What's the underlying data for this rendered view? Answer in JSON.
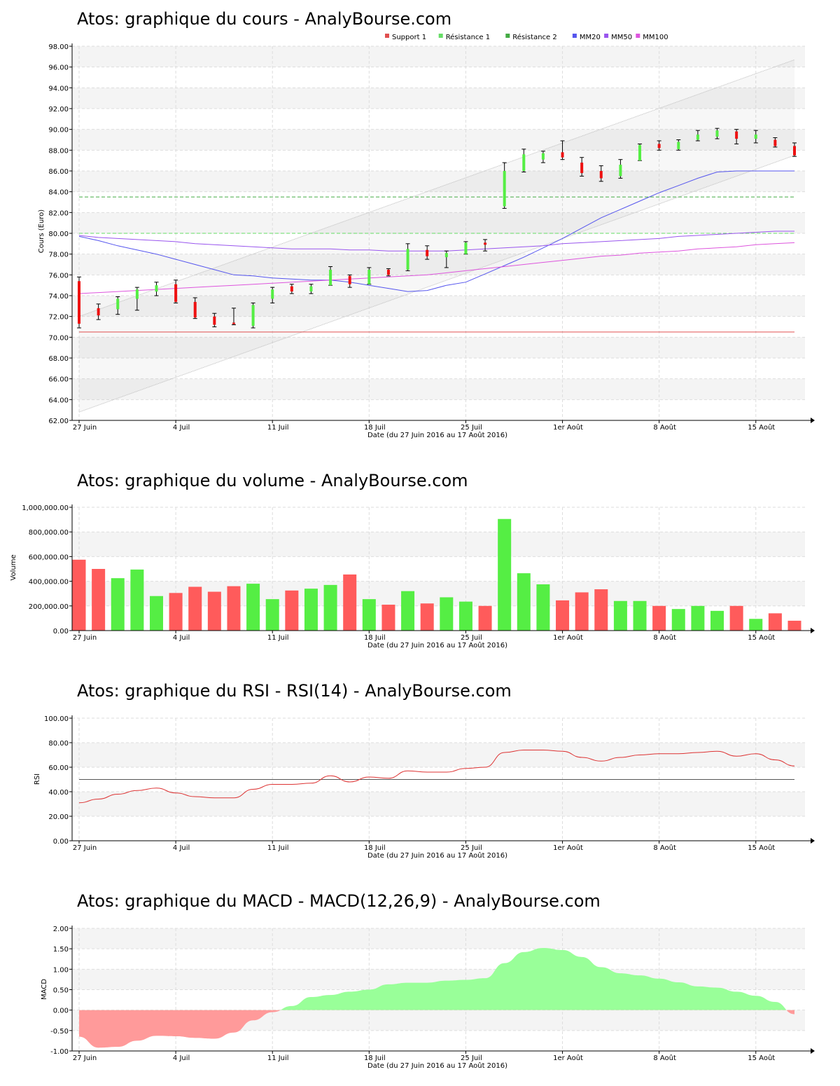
{
  "charts": {
    "price": {
      "title": "Atos: graphique du cours - AnalyBourse.com",
      "ylabel": "Cours (Euro)",
      "xlabel": "Date (du 27 Juin 2016 au 17 Août 2016)",
      "legend": [
        {
          "label": "Support 1",
          "color": "#e05050"
        },
        {
          "label": "Résistance 1",
          "color": "#66dd66"
        },
        {
          "label": "Résistance 2",
          "color": "#44aa44"
        },
        {
          "label": "MM20",
          "color": "#5555ee"
        },
        {
          "label": "MM50",
          "color": "#9955ee"
        },
        {
          "label": "MM100",
          "color": "#dd55dd"
        }
      ]
    },
    "volume": {
      "title": "Atos: graphique du volume - AnalyBourse.com",
      "ylabel": "Volume",
      "xlabel": "Date (du 27 Juin 2016 au 17 Août 2016)"
    },
    "rsi": {
      "title": "Atos: graphique du RSI - RSI(14) - AnalyBourse.com",
      "ylabel": "RSI",
      "xlabel": "Date (du 27 Juin 2016 au 17 Août 2016)"
    },
    "macd": {
      "title": "Atos: graphique du MACD - MACD(12,26,9) - AnalyBourse.com",
      "ylabel": "MACD",
      "xlabel": "Date (du 27 Juin 2016 au 17 Août 2016)"
    }
  },
  "chart_data": [
    {
      "type": "candlestick",
      "title": "Atos: graphique du cours - AnalyBourse.com",
      "ylabel": "Cours (Euro)",
      "xlabel": "Date (du 27 Juin 2016 au 17 Août 2016)",
      "x_tick_labels": [
        "27 Juin",
        "4 Juil",
        "11 Juil",
        "18 Juil",
        "25 Juil",
        "1er Août",
        "8 Août",
        "15 Août"
      ],
      "x_tick_index": [
        0,
        5,
        10,
        15,
        20,
        25,
        30,
        35
      ],
      "y_ticks": [
        "62.00",
        "64.00",
        "66.00",
        "68.00",
        "70.00",
        "72.00",
        "74.00",
        "76.00",
        "78.00",
        "80.00",
        "82.00",
        "84.00",
        "86.00",
        "88.00",
        "90.00",
        "92.00",
        "94.00",
        "96.00",
        "98.00"
      ],
      "ylim": [
        62,
        98
      ],
      "grid": true,
      "legend_position": "top-center",
      "candles": [
        {
          "o": 75.4,
          "h": 75.8,
          "l": 70.9,
          "c": 71.3
        },
        {
          "o": 72.8,
          "h": 73.2,
          "l": 71.7,
          "c": 72.1
        },
        {
          "o": 72.7,
          "h": 73.9,
          "l": 72.2,
          "c": 73.7
        },
        {
          "o": 73.7,
          "h": 74.8,
          "l": 72.6,
          "c": 74.6
        },
        {
          "o": 74.4,
          "h": 75.3,
          "l": 74.0,
          "c": 75.0
        },
        {
          "o": 75.1,
          "h": 75.5,
          "l": 73.3,
          "c": 73.4
        },
        {
          "o": 73.4,
          "h": 73.8,
          "l": 71.8,
          "c": 71.9
        },
        {
          "o": 72.0,
          "h": 72.3,
          "l": 71.0,
          "c": 71.2
        },
        {
          "o": 71.4,
          "h": 72.8,
          "l": 71.2,
          "c": 71.3
        },
        {
          "o": 71.1,
          "h": 73.3,
          "l": 70.9,
          "c": 73.1
        },
        {
          "o": 73.7,
          "h": 74.8,
          "l": 73.3,
          "c": 74.6
        },
        {
          "o": 74.9,
          "h": 75.1,
          "l": 74.2,
          "c": 74.4
        },
        {
          "o": 74.4,
          "h": 75.1,
          "l": 74.2,
          "c": 74.9
        },
        {
          "o": 75.0,
          "h": 76.8,
          "l": 75.0,
          "c": 76.5
        },
        {
          "o": 75.9,
          "h": 76.0,
          "l": 74.8,
          "c": 75.1
        },
        {
          "o": 75.1,
          "h": 76.7,
          "l": 75.1,
          "c": 76.5
        },
        {
          "o": 76.5,
          "h": 76.6,
          "l": 75.9,
          "c": 76.0
        },
        {
          "o": 76.5,
          "h": 79.0,
          "l": 76.4,
          "c": 78.5
        },
        {
          "o": 78.4,
          "h": 78.8,
          "l": 77.5,
          "c": 77.8
        },
        {
          "o": 77.7,
          "h": 78.3,
          "l": 76.7,
          "c": 78.1
        },
        {
          "o": 78.0,
          "h": 79.2,
          "l": 78.0,
          "c": 79.1
        },
        {
          "o": 79.1,
          "h": 79.4,
          "l": 78.3,
          "c": 78.9
        },
        {
          "o": 82.6,
          "h": 86.8,
          "l": 82.4,
          "c": 86.0
        },
        {
          "o": 86.0,
          "h": 88.1,
          "l": 85.9,
          "c": 87.6
        },
        {
          "o": 87.1,
          "h": 87.9,
          "l": 86.8,
          "c": 87.7
        },
        {
          "o": 87.8,
          "h": 88.9,
          "l": 87.1,
          "c": 87.3
        },
        {
          "o": 86.8,
          "h": 87.3,
          "l": 85.5,
          "c": 85.8
        },
        {
          "o": 86.0,
          "h": 86.5,
          "l": 85.0,
          "c": 85.3
        },
        {
          "o": 85.5,
          "h": 87.1,
          "l": 85.3,
          "c": 86.6
        },
        {
          "o": 87.0,
          "h": 88.6,
          "l": 87.0,
          "c": 88.5
        },
        {
          "o": 88.6,
          "h": 88.9,
          "l": 88.0,
          "c": 88.2
        },
        {
          "o": 88.1,
          "h": 89.0,
          "l": 88.0,
          "c": 88.8
        },
        {
          "o": 89.0,
          "h": 89.9,
          "l": 88.9,
          "c": 89.5
        },
        {
          "o": 89.3,
          "h": 90.1,
          "l": 89.1,
          "c": 89.9
        },
        {
          "o": 89.8,
          "h": 90.0,
          "l": 88.6,
          "c": 89.1
        },
        {
          "o": 89.1,
          "h": 89.9,
          "l": 88.7,
          "c": 89.5
        },
        {
          "o": 89.0,
          "h": 89.2,
          "l": 88.3,
          "c": 88.4
        },
        {
          "o": 88.4,
          "h": 88.7,
          "l": 87.4,
          "c": 87.5
        }
      ],
      "series": [
        {
          "name": "MM20",
          "color": "#5555ee",
          "values": [
            79.7,
            79.3,
            78.8,
            78.4,
            78.0,
            77.5,
            77.0,
            76.5,
            76.0,
            75.9,
            75.7,
            75.6,
            75.5,
            75.5,
            75.3,
            75.0,
            74.7,
            74.4,
            74.5,
            75.0,
            75.3,
            76.1,
            76.9,
            77.7,
            78.6,
            79.5,
            80.5,
            81.5,
            82.3,
            83.1,
            83.9,
            84.6,
            85.3,
            85.9,
            86.0,
            86.0,
            86.0,
            86.0
          ]
        },
        {
          "name": "MM50",
          "color": "#9955ee",
          "values": [
            79.8,
            79.6,
            79.5,
            79.4,
            79.3,
            79.2,
            79.0,
            78.9,
            78.8,
            78.7,
            78.6,
            78.5,
            78.5,
            78.5,
            78.4,
            78.4,
            78.3,
            78.3,
            78.3,
            78.3,
            78.4,
            78.5,
            78.6,
            78.7,
            78.8,
            79.0,
            79.1,
            79.2,
            79.3,
            79.4,
            79.5,
            79.7,
            79.8,
            79.9,
            80.0,
            80.1,
            80.2,
            80.2
          ]
        },
        {
          "name": "MM100",
          "color": "#dd55dd",
          "values": [
            74.2,
            74.3,
            74.4,
            74.5,
            74.6,
            74.7,
            74.8,
            74.9,
            75.0,
            75.1,
            75.2,
            75.3,
            75.4,
            75.5,
            75.6,
            75.7,
            75.8,
            75.9,
            76.0,
            76.2,
            76.4,
            76.6,
            76.8,
            77.0,
            77.2,
            77.4,
            77.6,
            77.8,
            77.9,
            78.1,
            78.2,
            78.3,
            78.5,
            78.6,
            78.7,
            78.9,
            79.0,
            79.1
          ]
        }
      ],
      "levels": [
        {
          "name": "Support 1",
          "value": 70.5,
          "color": "#e05050"
        },
        {
          "name": "Résistance 1",
          "value": 80.0,
          "color": "#66dd66"
        },
        {
          "name": "Résistance 2",
          "value": 83.5,
          "color": "#44aa44"
        }
      ],
      "channel": {
        "upper": [
          72.0,
          96.7
        ],
        "lower": [
          62.8,
          87.5
        ]
      }
    },
    {
      "type": "bar",
      "title": "Atos: graphique du volume - AnalyBourse.com",
      "ylabel": "Volume",
      "xlabel": "Date (du 27 Juin 2016 au 17 Août 2016)",
      "x_tick_labels": [
        "27 Juin",
        "4 Juil",
        "11 Juil",
        "18 Juil",
        "25 Juil",
        "1er Août",
        "8 Août",
        "15 Août"
      ],
      "x_tick_index": [
        0,
        5,
        10,
        15,
        20,
        25,
        30,
        35
      ],
      "y_ticks": [
        "0.00",
        "200,000.00",
        "400,000.00",
        "600,000.00",
        "800,000.00",
        "1,000,000.00"
      ],
      "ylim": [
        0,
        1000000
      ],
      "grid": true,
      "values": [
        575000,
        500000,
        425000,
        495000,
        280000,
        305000,
        355000,
        315000,
        360000,
        380000,
        255000,
        325000,
        340000,
        370000,
        455000,
        255000,
        210000,
        320000,
        220000,
        270000,
        235000,
        200000,
        905000,
        465000,
        375000,
        245000,
        310000,
        335000,
        240000,
        240000,
        200000,
        175000,
        200000,
        160000,
        200000,
        95000,
        140000,
        80000
      ],
      "colors": [
        "red",
        "red",
        "green",
        "green",
        "green",
        "red",
        "red",
        "red",
        "red",
        "green",
        "green",
        "red",
        "green",
        "green",
        "red",
        "green",
        "red",
        "green",
        "red",
        "green",
        "green",
        "red",
        "green",
        "green",
        "green",
        "red",
        "red",
        "red",
        "green",
        "green",
        "red",
        "green",
        "green",
        "green",
        "red",
        "green",
        "red",
        "red"
      ]
    },
    {
      "type": "line",
      "title": "Atos: graphique du RSI - RSI(14) - AnalyBourse.com",
      "ylabel": "RSI",
      "xlabel": "Date (du 27 Juin 2016 au 17 Août 2016)",
      "x_tick_labels": [
        "27 Juin",
        "4 Juil",
        "11 Juil",
        "18 Juil",
        "25 Juil",
        "1er Août",
        "8 Août",
        "15 Août"
      ],
      "x_tick_index": [
        0,
        5,
        10,
        15,
        20,
        25,
        30,
        35
      ],
      "y_ticks": [
        "0.00",
        "20.00",
        "40.00",
        "60.00",
        "80.00",
        "100.00"
      ],
      "ylim": [
        0,
        100
      ],
      "grid": true,
      "reference_line": 50,
      "series": [
        {
          "name": "RSI",
          "color": "#dd3333",
          "values": [
            31,
            34,
            38,
            41,
            43,
            39,
            36,
            35,
            35,
            42,
            46,
            46,
            47,
            53,
            48,
            52,
            51,
            57,
            56,
            56,
            59,
            60,
            72,
            74,
            74,
            73,
            68,
            65,
            68,
            70,
            71,
            71,
            72,
            73,
            69,
            71,
            66,
            61
          ]
        }
      ]
    },
    {
      "type": "area",
      "title": "Atos: graphique du MACD - MACD(12,26,9) - AnalyBourse.com",
      "ylabel": "MACD",
      "xlabel": "Date (du 27 Juin 2016 au 17 Août 2016)",
      "x_tick_labels": [
        "27 Juin",
        "4 Juil",
        "11 Juil",
        "18 Juil",
        "25 Juil",
        "1er Août",
        "8 Août",
        "15 Août"
      ],
      "x_tick_index": [
        0,
        5,
        10,
        15,
        20,
        25,
        30,
        35
      ],
      "y_ticks": [
        "-1.00",
        "-0.50",
        "0.00",
        "0.50",
        "1.00",
        "1.50",
        "2.00"
      ],
      "ylim": [
        -1,
        2
      ],
      "grid": true,
      "series": [
        {
          "name": "MACD",
          "values": [
            -0.65,
            -0.92,
            -0.9,
            -0.75,
            -0.63,
            -0.64,
            -0.68,
            -0.7,
            -0.55,
            -0.25,
            -0.05,
            0.1,
            0.32,
            0.37,
            0.45,
            0.5,
            0.63,
            0.67,
            0.67,
            0.72,
            0.74,
            0.78,
            1.15,
            1.42,
            1.52,
            1.47,
            1.3,
            1.05,
            0.9,
            0.85,
            0.77,
            0.68,
            0.58,
            0.55,
            0.45,
            0.35,
            0.2,
            -0.1
          ]
        }
      ]
    }
  ]
}
